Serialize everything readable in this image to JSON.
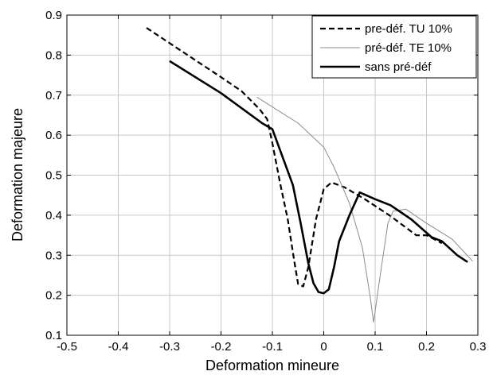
{
  "chart_data": {
    "type": "line",
    "title": "",
    "xlabel": "Deformation mineure",
    "ylabel": "Deformation majeure",
    "xlim": [
      -0.5,
      0.3
    ],
    "ylim": [
      0.1,
      0.9
    ],
    "xticks": [
      "-0.5",
      "-0.4",
      "-0.3",
      "-0.2",
      "-0.1",
      "0",
      "0.1",
      "0.2",
      "0.3"
    ],
    "yticks": [
      "0.1",
      "0.2",
      "0.3",
      "0.4",
      "0.5",
      "0.6",
      "0.7",
      "0.8",
      "0.9"
    ],
    "grid": true,
    "legend_position": "top-right",
    "series": [
      {
        "name": "pre-déf. TU 10%",
        "style": "dashed",
        "color": "#000000",
        "points": [
          [
            -0.345,
            0.868
          ],
          [
            -0.2,
            0.745
          ],
          [
            -0.16,
            0.71
          ],
          [
            -0.125,
            0.665
          ],
          [
            -0.11,
            0.64
          ],
          [
            -0.1,
            0.58
          ],
          [
            -0.085,
            0.48
          ],
          [
            -0.07,
            0.39
          ],
          [
            -0.058,
            0.29
          ],
          [
            -0.05,
            0.228
          ],
          [
            -0.04,
            0.222
          ],
          [
            -0.03,
            0.27
          ],
          [
            -0.015,
            0.39
          ],
          [
            0.0,
            0.465
          ],
          [
            0.015,
            0.482
          ],
          [
            0.04,
            0.47
          ],
          [
            0.08,
            0.44
          ],
          [
            0.13,
            0.398
          ],
          [
            0.18,
            0.35
          ],
          [
            0.2,
            0.35
          ],
          [
            0.23,
            0.33
          ]
        ]
      },
      {
        "name": "pré-déf. TE 10%",
        "style": "solid-thin",
        "color": "#8c8c8c",
        "points": [
          [
            -0.13,
            0.695
          ],
          [
            -0.05,
            0.63
          ],
          [
            0.0,
            0.57
          ],
          [
            0.02,
            0.52
          ],
          [
            0.05,
            0.43
          ],
          [
            0.075,
            0.32
          ],
          [
            0.09,
            0.2
          ],
          [
            0.097,
            0.133
          ],
          [
            0.11,
            0.25
          ],
          [
            0.125,
            0.38
          ],
          [
            0.135,
            0.41
          ],
          [
            0.16,
            0.415
          ],
          [
            0.2,
            0.38
          ],
          [
            0.25,
            0.34
          ],
          [
            0.29,
            0.285
          ]
        ]
      },
      {
        "name": "sans pré-déf",
        "style": "solid-thick",
        "color": "#000000",
        "points": [
          [
            -0.3,
            0.785
          ],
          [
            -0.2,
            0.705
          ],
          [
            -0.12,
            0.63
          ],
          [
            -0.1,
            0.615
          ],
          [
            -0.08,
            0.545
          ],
          [
            -0.06,
            0.475
          ],
          [
            -0.045,
            0.38
          ],
          [
            -0.03,
            0.28
          ],
          [
            -0.02,
            0.23
          ],
          [
            -0.01,
            0.208
          ],
          [
            0.0,
            0.205
          ],
          [
            0.01,
            0.215
          ],
          [
            0.02,
            0.27
          ],
          [
            0.03,
            0.335
          ],
          [
            0.05,
            0.4
          ],
          [
            0.07,
            0.457
          ],
          [
            0.1,
            0.44
          ],
          [
            0.13,
            0.425
          ],
          [
            0.17,
            0.39
          ],
          [
            0.21,
            0.345
          ],
          [
            0.23,
            0.335
          ],
          [
            0.26,
            0.3
          ],
          [
            0.28,
            0.283
          ]
        ]
      }
    ]
  }
}
